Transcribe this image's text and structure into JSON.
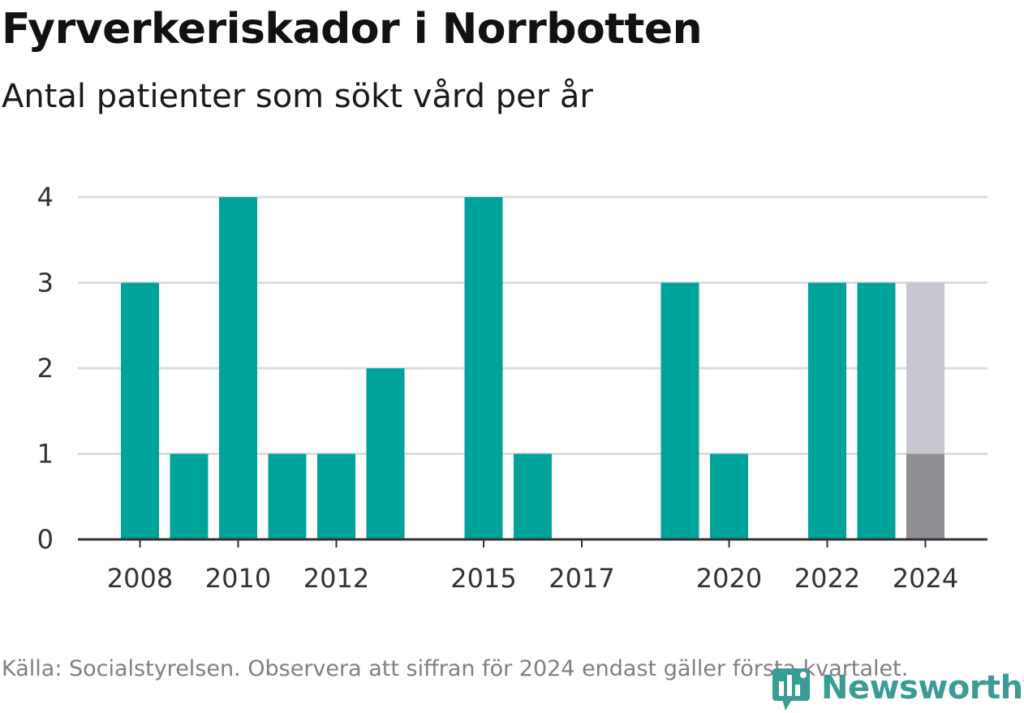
{
  "title": "Fyrverkeriskador i Norrbotten",
  "subtitle": "Antal patienter som sökt vård per år",
  "footer": "Källa: Socialstyrelsen. Observera att siffran för 2024 endast gäller första kvartalet.",
  "brand": "Newsworthy",
  "colors": {
    "bar": "#00a39a",
    "partial_light": "#c8c7d0",
    "partial_dark": "#8e8e93",
    "grid": "#dddddd",
    "axis": "#333333",
    "brand": "#3a9c94"
  },
  "chart_data": {
    "type": "bar",
    "categories": [
      "2007",
      "2008",
      "2009",
      "2010",
      "2011",
      "2012",
      "2013",
      "2014",
      "2015",
      "2016",
      "2017",
      "2018",
      "2019",
      "2020",
      "2021",
      "2022",
      "2023",
      "2024"
    ],
    "values": [
      0,
      3,
      1,
      4,
      1,
      1,
      2,
      0,
      4,
      1,
      0,
      0,
      3,
      1,
      0,
      3,
      3,
      1
    ],
    "comparison_2024": 3,
    "x_tick_labels": [
      "2008",
      "2010",
      "2012",
      "2015",
      "2017",
      "2020",
      "2022",
      "2024"
    ],
    "y_ticks": [
      0,
      1,
      2,
      3,
      4
    ],
    "ylim": [
      0,
      4
    ],
    "xlabel": "",
    "ylabel": "",
    "grid": true
  }
}
